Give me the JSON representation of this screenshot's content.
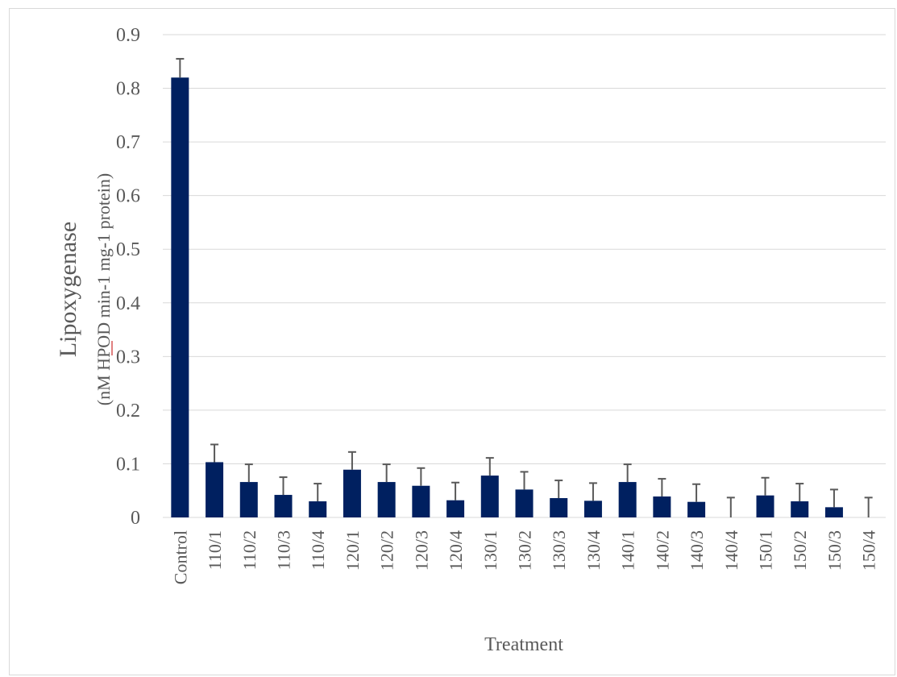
{
  "chart_data": {
    "type": "bar",
    "xlabel": "Treatment",
    "ylabel": "Lipoxygenase",
    "ylabel_units": "(nM HPOD min-1 mg-1  protein)",
    "ylim": [
      0,
      0.9
    ],
    "y_ticks": [
      "0",
      "0.1",
      "0.2",
      "0.3",
      "0.4",
      "0.5",
      "0.6",
      "0.7",
      "0.8",
      "0.9"
    ],
    "grid": true,
    "legend": "none",
    "categories": [
      "Control",
      "110/1",
      "110/2",
      "110/3",
      "110/4",
      "120/1",
      "120/2",
      "120/3",
      "120/4",
      "130/1",
      "130/2",
      "130/3",
      "130/4",
      "140/1",
      "140/2",
      "140/3",
      "140/4",
      "150/1",
      "150/2",
      "150/3",
      "150/4"
    ],
    "values": [
      0.82,
      0.103,
      0.066,
      0.042,
      0.03,
      0.089,
      0.066,
      0.059,
      0.032,
      0.078,
      0.052,
      0.036,
      0.031,
      0.066,
      0.039,
      0.029,
      0.0,
      0.041,
      0.03,
      0.019,
      0.0
    ],
    "errors": [
      0.035,
      0.033,
      0.033,
      0.033,
      0.033,
      0.033,
      0.033,
      0.033,
      0.033,
      0.033,
      0.033,
      0.033,
      0.033,
      0.033,
      0.033,
      0.033,
      0.037,
      0.033,
      0.033,
      0.033,
      0.037
    ],
    "colors": {
      "bar": "#002060",
      "error": "#595959",
      "grid": "#d9d9d9",
      "text": "#595959"
    }
  }
}
